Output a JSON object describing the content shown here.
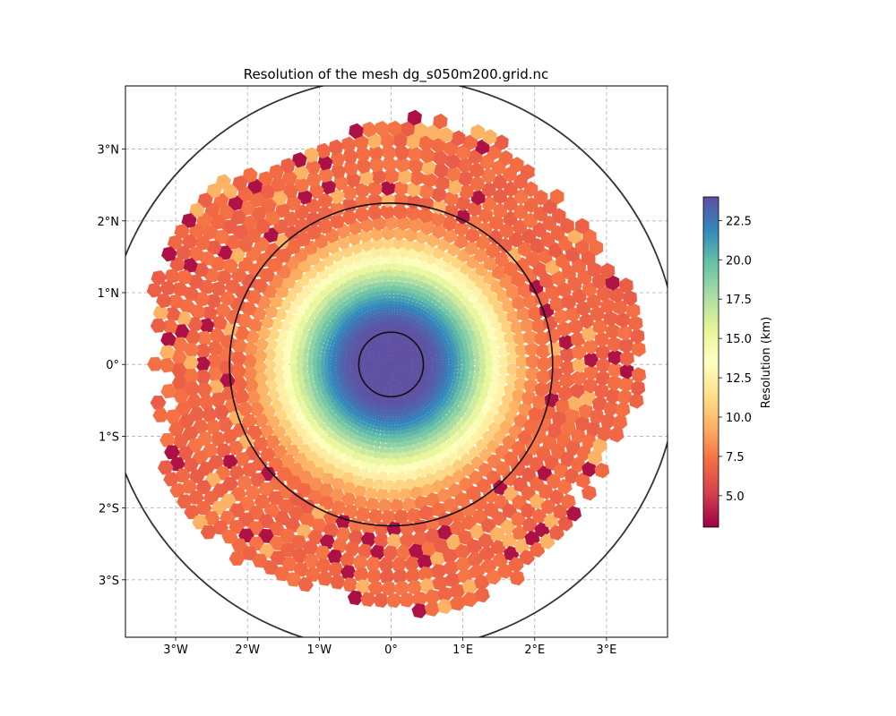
{
  "chart_data": {
    "type": "heatmap",
    "title": "Resolution of the mesh dg_s050m200.grid.nc",
    "x_ticks": [
      "3°W",
      "2°W",
      "1°W",
      "0°",
      "1°E",
      "2°E",
      "3°E"
    ],
    "x_tick_values": [
      -3,
      -2,
      -1,
      0,
      1,
      2,
      3
    ],
    "y_ticks": [
      "3°N",
      "2°N",
      "1°N",
      "0°",
      "1°S",
      "2°S",
      "3°S"
    ],
    "y_tick_values": [
      3,
      2,
      1,
      0,
      -1,
      -2,
      -3
    ],
    "xlim": [
      -3.7,
      3.85
    ],
    "ylim": [
      -3.8,
      3.88
    ],
    "grid": true,
    "colormap": "Spectral",
    "colors": [
      "#9e0142",
      "#d53e4f",
      "#f46d43",
      "#fdae61",
      "#fee08b",
      "#ffffbf",
      "#e6f598",
      "#abdda4",
      "#66c2a5",
      "#3288bd",
      "#5e4fa2"
    ],
    "colorbar": {
      "label": "Resolution (km)",
      "ticks": [
        "5.0",
        "7.5",
        "10.0",
        "12.5",
        "15.0",
        "17.5",
        "20.0",
        "22.5"
      ],
      "tick_values": [
        5.0,
        7.5,
        10.0,
        12.5,
        15.0,
        17.5,
        20.0,
        22.5
      ],
      "range": [
        3.0,
        24.0
      ],
      "location": "right"
    },
    "mesh": {
      "center": [
        0,
        0
      ],
      "fine_resolution_km": 3.0,
      "coarse_resolution_km": 20.0,
      "extent_radius_deg": 3.5
    },
    "circles": [
      {
        "center": [
          0,
          0
        ],
        "radius_deg": 0.45
      },
      {
        "center": [
          0,
          0
        ],
        "radius_deg": 2.25
      },
      {
        "center": [
          0,
          0
        ],
        "radius_deg": 4.0
      }
    ]
  }
}
